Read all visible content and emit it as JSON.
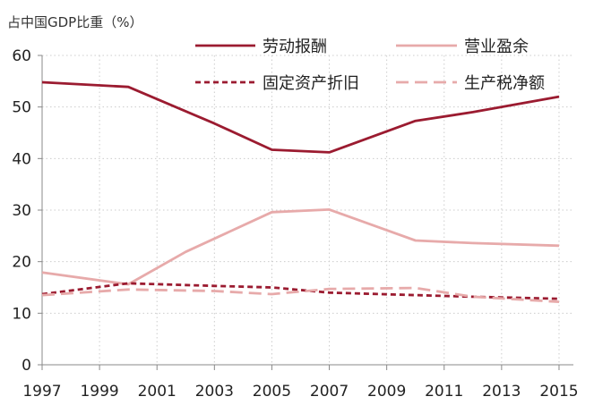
{
  "chart_data": {
    "type": "line",
    "title": "",
    "ylabel": "占中国GDP比重（%）",
    "xlabel": "",
    "ylim": [
      0,
      60
    ],
    "yticks": [
      0,
      10,
      20,
      30,
      40,
      50,
      60
    ],
    "xlim": [
      1997,
      2015.5
    ],
    "xticks": [
      1997,
      1999,
      2001,
      2003,
      2005,
      2007,
      2009,
      2011,
      2013,
      2015
    ],
    "grid": "dotted",
    "legend_position": "top",
    "series": [
      {
        "name": "劳动报酬",
        "color": "#9b1b30",
        "dash": "solid",
        "x": [
          1997,
          2000,
          2003,
          2005,
          2007,
          2010,
          2012,
          2015
        ],
        "y": [
          54.8,
          53.9,
          46.8,
          41.7,
          41.2,
          47.3,
          49.0,
          52.0
        ]
      },
      {
        "name": "营业盈余",
        "color": "#e7aaaa",
        "dash": "solid",
        "x": [
          1997,
          2000,
          2002,
          2005,
          2007,
          2010,
          2012,
          2015
        ],
        "y": [
          17.9,
          15.6,
          21.9,
          29.6,
          30.1,
          24.1,
          23.6,
          23.1
        ]
      },
      {
        "name": "固定资产折旧",
        "color": "#9b1b30",
        "dash": "short",
        "x": [
          1997,
          2000,
          2003,
          2005,
          2007,
          2010,
          2012,
          2015
        ],
        "y": [
          13.7,
          15.8,
          15.3,
          15.0,
          14.0,
          13.5,
          13.2,
          12.8
        ]
      },
      {
        "name": "生产税净额",
        "color": "#e7aaaa",
        "dash": "long",
        "x": [
          1997,
          2000,
          2003,
          2005,
          2007,
          2010,
          2012,
          2015
        ],
        "y": [
          13.5,
          14.6,
          14.3,
          13.7,
          14.7,
          14.9,
          13.2,
          12.2
        ]
      }
    ]
  }
}
